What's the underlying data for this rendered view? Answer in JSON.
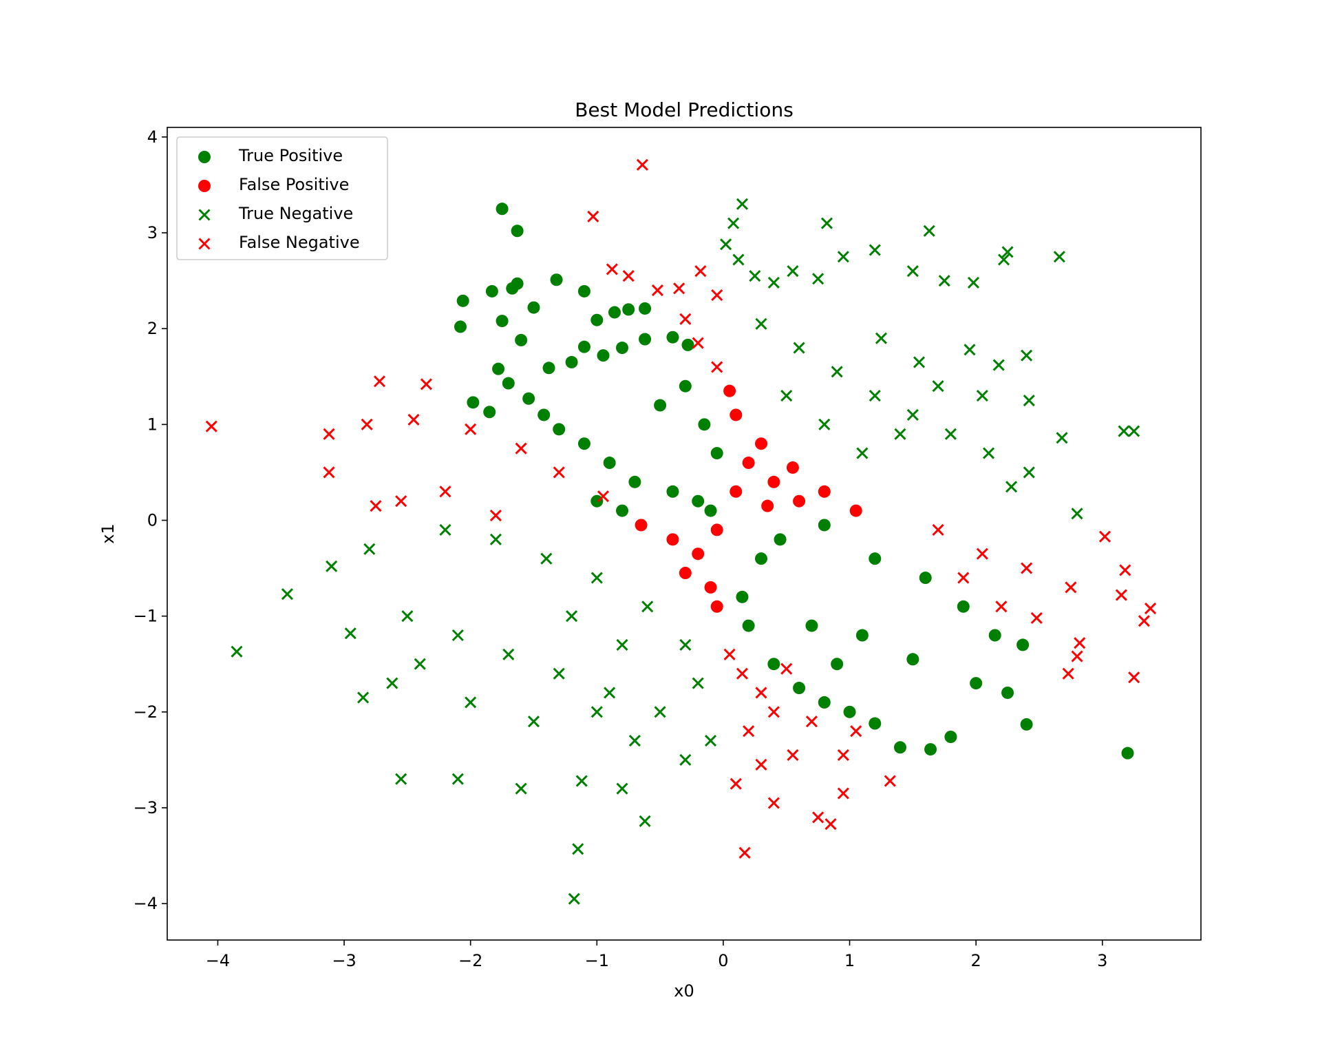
{
  "chart_data": {
    "type": "scatter",
    "title": "Best Model Predictions",
    "xlabel": "x0",
    "ylabel": "x1",
    "xlim": [
      -4.4,
      3.78
    ],
    "ylim": [
      -4.38,
      4.1
    ],
    "xticks": [
      -4,
      -3,
      -2,
      -1,
      0,
      1,
      2,
      3
    ],
    "yticks": [
      -4,
      -3,
      -2,
      -1,
      0,
      1,
      2,
      3,
      4
    ],
    "xtick_labels": [
      "−4",
      "−3",
      "−2",
      "−1",
      "0",
      "1",
      "2",
      "3"
    ],
    "ytick_labels": [
      "−4",
      "−3",
      "−2",
      "−1",
      "0",
      "1",
      "2",
      "3",
      "4"
    ],
    "grid": false,
    "legend_position": "top-left",
    "series": [
      {
        "name": "True Positive",
        "marker": "circle",
        "color": "#008000",
        "points": [
          [
            -1.75,
            3.25
          ],
          [
            -1.63,
            3.02
          ],
          [
            -1.32,
            2.51
          ],
          [
            -2.06,
            2.29
          ],
          [
            -1.83,
            2.39
          ],
          [
            -1.67,
            2.42
          ],
          [
            -1.63,
            2.47
          ],
          [
            -2.08,
            2.02
          ],
          [
            -1.1,
            2.39
          ],
          [
            -1.75,
            2.08
          ],
          [
            -1.5,
            2.22
          ],
          [
            -1.0,
            2.09
          ],
          [
            -0.86,
            2.17
          ],
          [
            -0.75,
            2.2
          ],
          [
            -0.62,
            2.21
          ],
          [
            -1.98,
            1.23
          ],
          [
            -1.85,
            1.13
          ],
          [
            -1.78,
            1.58
          ],
          [
            -1.6,
            1.88
          ],
          [
            -1.38,
            1.59
          ],
          [
            -1.2,
            1.65
          ],
          [
            -1.1,
            1.81
          ],
          [
            -0.95,
            1.72
          ],
          [
            -0.8,
            1.8
          ],
          [
            -0.62,
            1.89
          ],
          [
            -0.4,
            1.91
          ],
          [
            -0.28,
            1.83
          ],
          [
            -1.7,
            1.43
          ],
          [
            -1.54,
            1.27
          ],
          [
            -1.42,
            1.1
          ],
          [
            -1.3,
            0.95
          ],
          [
            -1.1,
            0.8
          ],
          [
            -0.9,
            0.6
          ],
          [
            -0.7,
            0.4
          ],
          [
            -0.4,
            0.3
          ],
          [
            -0.2,
            0.2
          ],
          [
            -0.1,
            0.1
          ],
          [
            -0.3,
            1.4
          ],
          [
            -0.5,
            1.2
          ],
          [
            -0.15,
            1.0
          ],
          [
            -0.05,
            0.7
          ],
          [
            -1.0,
            0.2
          ],
          [
            -0.8,
            0.1
          ],
          [
            0.45,
            -0.2
          ],
          [
            0.8,
            -0.05
          ],
          [
            1.2,
            -0.4
          ],
          [
            1.6,
            -0.6
          ],
          [
            1.9,
            -0.9
          ],
          [
            2.15,
            -1.2
          ],
          [
            2.37,
            -1.3
          ],
          [
            2.4,
            -2.13
          ],
          [
            3.2,
            -2.43
          ],
          [
            1.8,
            -2.26
          ],
          [
            1.64,
            -2.39
          ],
          [
            1.4,
            -2.37
          ],
          [
            1.2,
            -2.12
          ],
          [
            1.0,
            -2.0
          ],
          [
            0.8,
            -1.9
          ],
          [
            0.6,
            -1.75
          ],
          [
            1.5,
            -1.45
          ],
          [
            1.1,
            -1.2
          ],
          [
            0.7,
            -1.1
          ],
          [
            0.2,
            -1.1
          ],
          [
            0.15,
            -0.8
          ],
          [
            0.3,
            -0.4
          ],
          [
            2.0,
            -1.7
          ],
          [
            2.25,
            -1.8
          ],
          [
            0.9,
            -1.5
          ],
          [
            0.4,
            -1.5
          ]
        ]
      },
      {
        "name": "False Positive",
        "marker": "circle",
        "color": "#ff0000",
        "points": [
          [
            0.05,
            1.35
          ],
          [
            0.1,
            1.1
          ],
          [
            0.3,
            0.8
          ],
          [
            0.55,
            0.55
          ],
          [
            0.8,
            0.3
          ],
          [
            1.05,
            0.1
          ],
          [
            0.1,
            0.3
          ],
          [
            0.35,
            0.15
          ],
          [
            -0.05,
            -0.1
          ],
          [
            -0.2,
            -0.35
          ],
          [
            -0.4,
            -0.2
          ],
          [
            -0.65,
            -0.05
          ],
          [
            -0.1,
            -0.7
          ],
          [
            -0.05,
            -0.9
          ],
          [
            0.2,
            0.6
          ],
          [
            0.6,
            0.2
          ],
          [
            -0.3,
            -0.55
          ],
          [
            0.4,
            0.4
          ]
        ]
      },
      {
        "name": "True Negative",
        "marker": "x",
        "color": "#008000",
        "points": [
          [
            0.15,
            3.3
          ],
          [
            0.08,
            3.1
          ],
          [
            0.02,
            2.88
          ],
          [
            0.12,
            2.72
          ],
          [
            0.25,
            2.55
          ],
          [
            0.4,
            2.48
          ],
          [
            0.55,
            2.6
          ],
          [
            0.75,
            2.52
          ],
          [
            0.82,
            3.1
          ],
          [
            0.95,
            2.75
          ],
          [
            1.2,
            2.82
          ],
          [
            1.5,
            2.6
          ],
          [
            1.63,
            3.02
          ],
          [
            2.25,
            2.8
          ],
          [
            2.66,
            2.75
          ],
          [
            2.22,
            2.72
          ],
          [
            1.98,
            2.48
          ],
          [
            1.75,
            2.5
          ],
          [
            0.3,
            2.05
          ],
          [
            0.6,
            1.8
          ],
          [
            0.9,
            1.55
          ],
          [
            1.2,
            1.3
          ],
          [
            1.5,
            1.1
          ],
          [
            1.8,
            0.9
          ],
          [
            2.1,
            0.7
          ],
          [
            2.42,
            0.5
          ],
          [
            2.68,
            0.86
          ],
          [
            3.17,
            0.93
          ],
          [
            3.25,
            0.93
          ],
          [
            2.8,
            0.07
          ],
          [
            2.4,
            1.72
          ],
          [
            2.42,
            1.25
          ],
          [
            2.18,
            1.62
          ],
          [
            1.95,
            1.78
          ],
          [
            1.7,
            1.4
          ],
          [
            1.4,
            0.9
          ],
          [
            1.1,
            0.7
          ],
          [
            0.8,
            1.0
          ],
          [
            0.5,
            1.3
          ],
          [
            1.25,
            1.9
          ],
          [
            1.55,
            1.65
          ],
          [
            2.05,
            1.3
          ],
          [
            2.28,
            0.35
          ],
          [
            -3.85,
            -1.37
          ],
          [
            -3.45,
            -0.77
          ],
          [
            -3.1,
            -0.48
          ],
          [
            -2.95,
            -1.18
          ],
          [
            -2.85,
            -1.85
          ],
          [
            -2.62,
            -1.7
          ],
          [
            -2.55,
            -2.7
          ],
          [
            -2.1,
            -2.7
          ],
          [
            -1.6,
            -2.8
          ],
          [
            -1.18,
            -3.95
          ],
          [
            -1.15,
            -3.43
          ],
          [
            -0.62,
            -3.14
          ],
          [
            -1.12,
            -2.72
          ],
          [
            -0.8,
            -2.8
          ],
          [
            -0.3,
            -2.5
          ],
          [
            -0.1,
            -2.3
          ],
          [
            -0.5,
            -2.0
          ],
          [
            -0.9,
            -1.8
          ],
          [
            -1.3,
            -1.6
          ],
          [
            -1.7,
            -1.4
          ],
          [
            -2.1,
            -1.2
          ],
          [
            -2.5,
            -1.0
          ],
          [
            -2.8,
            -0.3
          ],
          [
            -2.2,
            -0.1
          ],
          [
            -1.8,
            -0.2
          ],
          [
            -1.4,
            -0.4
          ],
          [
            -1.0,
            -0.6
          ],
          [
            -0.6,
            -0.9
          ],
          [
            -0.3,
            -1.3
          ],
          [
            -0.2,
            -1.7
          ],
          [
            -0.7,
            -2.3
          ],
          [
            -1.5,
            -2.1
          ],
          [
            -2.0,
            -1.9
          ],
          [
            -2.4,
            -1.5
          ],
          [
            -1.2,
            -1.0
          ],
          [
            -0.8,
            -1.3
          ],
          [
            -1.0,
            -2.0
          ]
        ]
      },
      {
        "name": "False Negative",
        "marker": "x",
        "color": "#ff0000",
        "points": [
          [
            -0.64,
            3.71
          ],
          [
            -1.03,
            3.17
          ],
          [
            -4.05,
            0.98
          ],
          [
            -3.12,
            0.9
          ],
          [
            -3.12,
            0.5
          ],
          [
            -2.82,
            1.0
          ],
          [
            -2.72,
            1.45
          ],
          [
            -2.35,
            1.42
          ],
          [
            -2.45,
            1.05
          ],
          [
            -2.0,
            0.95
          ],
          [
            -1.6,
            0.75
          ],
          [
            -1.3,
            0.5
          ],
          [
            -0.95,
            0.25
          ],
          [
            -2.75,
            0.15
          ],
          [
            -2.2,
            0.3
          ],
          [
            -1.8,
            0.05
          ],
          [
            -2.55,
            0.2
          ],
          [
            -0.88,
            2.62
          ],
          [
            -0.75,
            2.55
          ],
          [
            -0.52,
            2.4
          ],
          [
            -0.35,
            2.42
          ],
          [
            -0.18,
            2.6
          ],
          [
            -0.05,
            2.35
          ],
          [
            -0.3,
            2.1
          ],
          [
            -0.2,
            1.85
          ],
          [
            -0.05,
            1.6
          ],
          [
            1.7,
            -0.1
          ],
          [
            2.05,
            -0.35
          ],
          [
            2.4,
            -0.5
          ],
          [
            2.75,
            -0.7
          ],
          [
            3.02,
            -0.17
          ],
          [
            3.18,
            -0.52
          ],
          [
            3.38,
            -0.92
          ],
          [
            3.33,
            -1.05
          ],
          [
            3.15,
            -0.78
          ],
          [
            3.25,
            -1.64
          ],
          [
            2.82,
            -1.28
          ],
          [
            2.73,
            -1.6
          ],
          [
            2.8,
            -1.42
          ],
          [
            2.48,
            -1.02
          ],
          [
            2.2,
            -0.9
          ],
          [
            1.9,
            -0.6
          ],
          [
            0.17,
            -3.47
          ],
          [
            0.4,
            -2.95
          ],
          [
            0.75,
            -3.1
          ],
          [
            0.85,
            -3.17
          ],
          [
            0.95,
            -2.85
          ],
          [
            1.32,
            -2.72
          ],
          [
            0.1,
            -2.75
          ],
          [
            0.3,
            -2.55
          ],
          [
            0.55,
            -2.45
          ],
          [
            0.2,
            -2.2
          ],
          [
            0.4,
            -2.0
          ],
          [
            0.7,
            -2.1
          ],
          [
            0.15,
            -1.6
          ],
          [
            0.3,
            -1.8
          ],
          [
            0.5,
            -1.55
          ],
          [
            0.05,
            -1.4
          ],
          [
            0.95,
            -2.45
          ],
          [
            1.05,
            -2.2
          ]
        ]
      }
    ]
  }
}
